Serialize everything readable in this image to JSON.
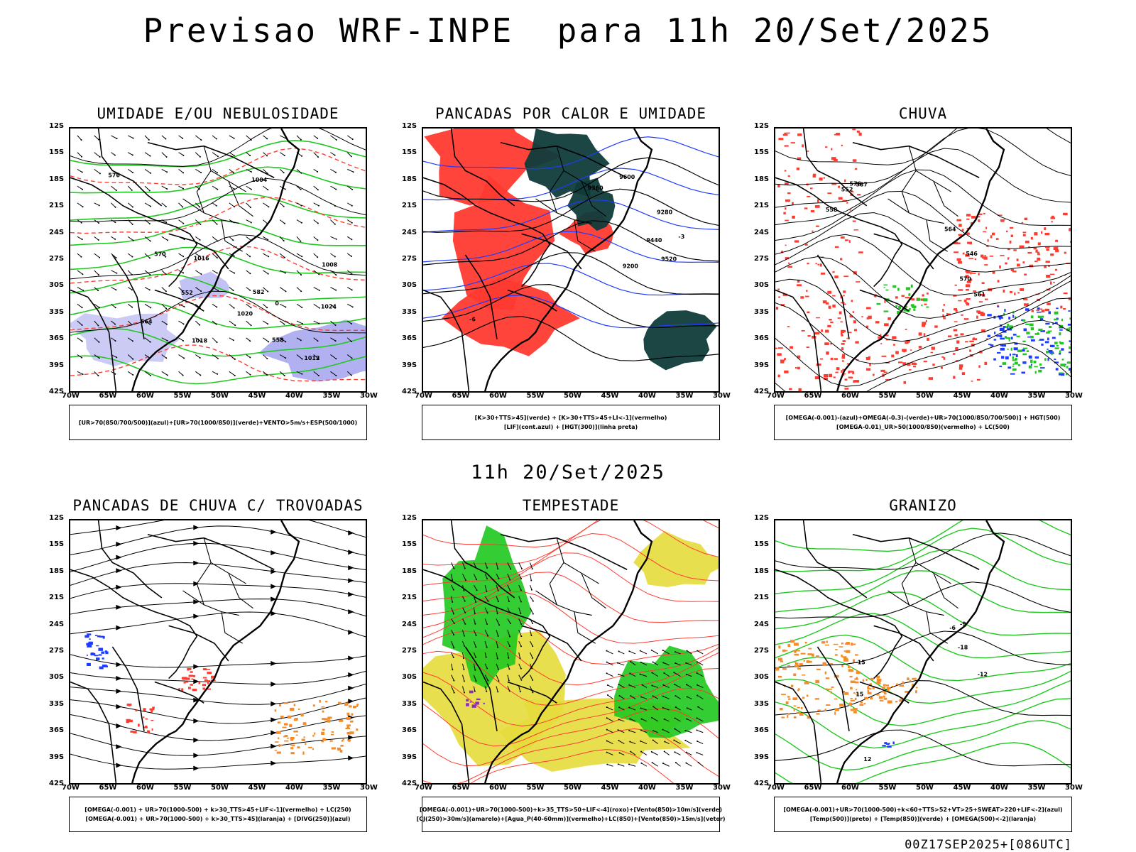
{
  "title": "Previsao WRF-INPE  para 11h 20/Set/2025",
  "mid_title": "11h 20/Set/2025",
  "footer": "00Z17SEP2025+[086UTC]",
  "latitude_labels": [
    "12S",
    "15S",
    "18S",
    "21S",
    "24S",
    "27S",
    "30S",
    "33S",
    "36S",
    "39S",
    "42S"
  ],
  "longitude_labels": [
    "70W",
    "65W",
    "60W",
    "55W",
    "50W",
    "45W",
    "40W",
    "35W",
    "30W"
  ],
  "colors": {
    "black": "#000000",
    "red": "#ff3b30",
    "green": "#1ec81e",
    "blue": "#1e3cff",
    "lavender": "#a8a8f0",
    "dark_teal": "#0f3c3a",
    "yellow": "#e6dc3c",
    "orange": "#f58c28",
    "purple": "#8c28c8"
  },
  "panels": [
    {
      "id": "umidade",
      "title": "UMIDADE E/OU NEBULOSIDADE",
      "legend": [
        "[UR>70(850/700/500)](azul)+[UR>70(1000/850)](verde)+VENTO>5m/s+ESP(500/1000)"
      ],
      "contour_labels": [
        "1012",
        "1016",
        "1004",
        "1008",
        "570",
        "576",
        "582",
        "564",
        "558",
        "552",
        "1020",
        "1024",
        "1018",
        "0"
      ]
    },
    {
      "id": "pancadas-calor",
      "title": "PANCADAS POR CALOR E UMIDADE",
      "legend": [
        "[K>30+TTS>45](verde) + [K>30+TTS>45+LI<-1](vermelho)",
        "[LIF](cont.azul) + [HGT(300)](linha preta)"
      ],
      "contour_labels": [
        "9600",
        "9520",
        "9440",
        "9360",
        "9280",
        "9200",
        "-6",
        "-3"
      ]
    },
    {
      "id": "chuva",
      "title": "CHUVA",
      "legend": [
        "[OMEGA(-0.001)-(azul)+OMEGA(-0.3)-(verde)+UR>70(1000/850/700/500)] + HGT(500)",
        "[OMEGA-0.01)_UR>50(1000/850)(vermelho) + LC(500)"
      ],
      "contour_labels": [
        "576",
        "570",
        "564",
        "558",
        "552",
        "546",
        "587",
        "561"
      ]
    },
    {
      "id": "pancadas-trovoadas",
      "title": "PANCADAS DE CHUVA C/ TROVOADAS",
      "legend": [
        "[OMEGA(-0.001) + UR>70(1000-500) + k>30_TTS>45+LIF<-1](vermelho) + LC(250)",
        "[OMEGA(-0.001) + UR>70(1000-500) + k>30_TTS>45](laranja) + [DIVG(250)](azul)"
      ],
      "contour_labels": []
    },
    {
      "id": "tempestade",
      "title": "TEMPESTADE",
      "legend": [
        "[OMEGA(-0.001)+UR>70(1000-500)+k>35_TTS>50+LIF<-4](roxo)+[Vento(850)>10m/s](verde)",
        "[CJ(250)>30m/s](amarelo)+[Agua_P(40-60mm)](vermelho)+LC(850)+[Vento(850)>15m/s](vetor)"
      ],
      "contour_labels": []
    },
    {
      "id": "granizo",
      "title": "GRANIZO",
      "legend": [
        "[OMEGA(-0.001)+UR>70(1000-500)+k<60+TTS>52+VT>25+SWEAT>220+LIF<-2](azul)",
        "[Temp(500)](preto) + [Temp(850)](verde) + [OMEGA(500)<-2](laranja)"
      ],
      "contour_labels": [
        "-12",
        "-15",
        "-18",
        "-9",
        "-6",
        "12",
        "15"
      ]
    }
  ]
}
